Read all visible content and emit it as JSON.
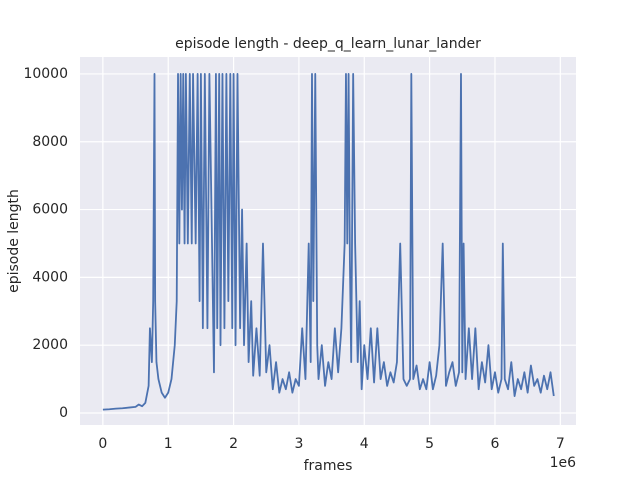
{
  "chart_data": {
    "type": "line",
    "title": "episode length - deep_q_learn_lunar_lander",
    "x_label": "frames",
    "y_label": "episode length",
    "x_offset_label": "1e6",
    "grid": true,
    "xlim": [
      -350000,
      7240000
    ],
    "ylim": [
      -354,
      10500
    ],
    "xticks": [
      {
        "value": 0,
        "label": "0"
      },
      {
        "value": 1000000,
        "label": "1"
      },
      {
        "value": 2000000,
        "label": "2"
      },
      {
        "value": 3000000,
        "label": "3"
      },
      {
        "value": 4000000,
        "label": "4"
      },
      {
        "value": 5000000,
        "label": "5"
      },
      {
        "value": 6000000,
        "label": "6"
      },
      {
        "value": 7000000,
        "label": "7"
      }
    ],
    "yticks": [
      0,
      2000,
      4000,
      6000,
      8000,
      10000
    ],
    "x": [
      0,
      100000,
      200000,
      300000,
      400000,
      500000,
      550000,
      600000,
      650000,
      700000,
      720000,
      750000,
      770000,
      790000,
      800000,
      820000,
      850000,
      900000,
      950000,
      1000000,
      1050000,
      1100000,
      1130000,
      1150000,
      1170000,
      1190000,
      1210000,
      1230000,
      1250000,
      1270000,
      1300000,
      1330000,
      1360000,
      1380000,
      1420000,
      1450000,
      1480000,
      1500000,
      1530000,
      1560000,
      1600000,
      1630000,
      1670000,
      1700000,
      1730000,
      1750000,
      1780000,
      1800000,
      1830000,
      1860000,
      1890000,
      1920000,
      1950000,
      1980000,
      2000000,
      2030000,
      2060000,
      2100000,
      2130000,
      2160000,
      2200000,
      2230000,
      2270000,
      2300000,
      2350000,
      2400000,
      2450000,
      2500000,
      2550000,
      2600000,
      2650000,
      2700000,
      2750000,
      2800000,
      2850000,
      2900000,
      2950000,
      3000000,
      3050000,
      3100000,
      3150000,
      3180000,
      3200000,
      3220000,
      3250000,
      3280000,
      3300000,
      3350000,
      3400000,
      3450000,
      3500000,
      3550000,
      3600000,
      3650000,
      3700000,
      3720000,
      3740000,
      3760000,
      3780000,
      3800000,
      3830000,
      3860000,
      3900000,
      3930000,
      3960000,
      4000000,
      4050000,
      4100000,
      4150000,
      4200000,
      4250000,
      4300000,
      4350000,
      4400000,
      4450000,
      4500000,
      4550000,
      4600000,
      4650000,
      4700000,
      4720000,
      4750000,
      4800000,
      4850000,
      4900000,
      4950000,
      5000000,
      5050000,
      5100000,
      5150000,
      5200000,
      5250000,
      5300000,
      5350000,
      5400000,
      5450000,
      5480000,
      5500000,
      5520000,
      5550000,
      5600000,
      5650000,
      5700000,
      5750000,
      5800000,
      5850000,
      5900000,
      5950000,
      6000000,
      6050000,
      6100000,
      6120000,
      6150000,
      6200000,
      6250000,
      6300000,
      6350000,
      6400000,
      6450000,
      6500000,
      6550000,
      6600000,
      6650000,
      6700000,
      6750000,
      6800000,
      6850000,
      6900000
    ],
    "series": [
      {
        "name": "episode length",
        "color": "#4c72b0",
        "values": [
          100,
          110,
          130,
          140,
          160,
          180,
          250,
          200,
          300,
          800,
          2500,
          1500,
          3300,
          10000,
          3300,
          1500,
          1000,
          600,
          450,
          600,
          1000,
          2000,
          3300,
          10000,
          5000,
          10000,
          6000,
          10000,
          5000,
          10000,
          5000,
          10000,
          5000,
          10000,
          5000,
          10000,
          3300,
          10000,
          2500,
          10000,
          2500,
          10000,
          5000,
          1200,
          10000,
          2500,
          10000,
          2000,
          10000,
          2500,
          10000,
          3300,
          10000,
          2500,
          10000,
          2000,
          10000,
          2500,
          6000,
          2000,
          5000,
          1500,
          3300,
          1100,
          2500,
          1100,
          5000,
          1200,
          2000,
          700,
          1500,
          600,
          1000,
          700,
          1200,
          600,
          1000,
          800,
          2500,
          1000,
          5000,
          1500,
          10000,
          3300,
          10000,
          2000,
          1000,
          2000,
          800,
          1500,
          1000,
          2500,
          1200,
          2500,
          5000,
          10000,
          5000,
          10000,
          4500,
          1500,
          10000,
          5000,
          1500,
          3300,
          700,
          2000,
          1000,
          2500,
          900,
          2500,
          1000,
          1500,
          800,
          1200,
          900,
          1500,
          5000,
          1000,
          800,
          1000,
          10000,
          1000,
          1400,
          700,
          1000,
          700,
          1500,
          700,
          1100,
          2000,
          5000,
          800,
          1200,
          1500,
          800,
          1200,
          10000,
          1200,
          5000,
          1000,
          2500,
          1000,
          2500,
          700,
          1500,
          900,
          2000,
          700,
          1200,
          600,
          1000,
          5000,
          1000,
          700,
          1500,
          500,
          1000,
          700,
          1200,
          600,
          1400,
          800,
          1000,
          600,
          1100,
          700,
          1200,
          500
        ]
      }
    ]
  }
}
